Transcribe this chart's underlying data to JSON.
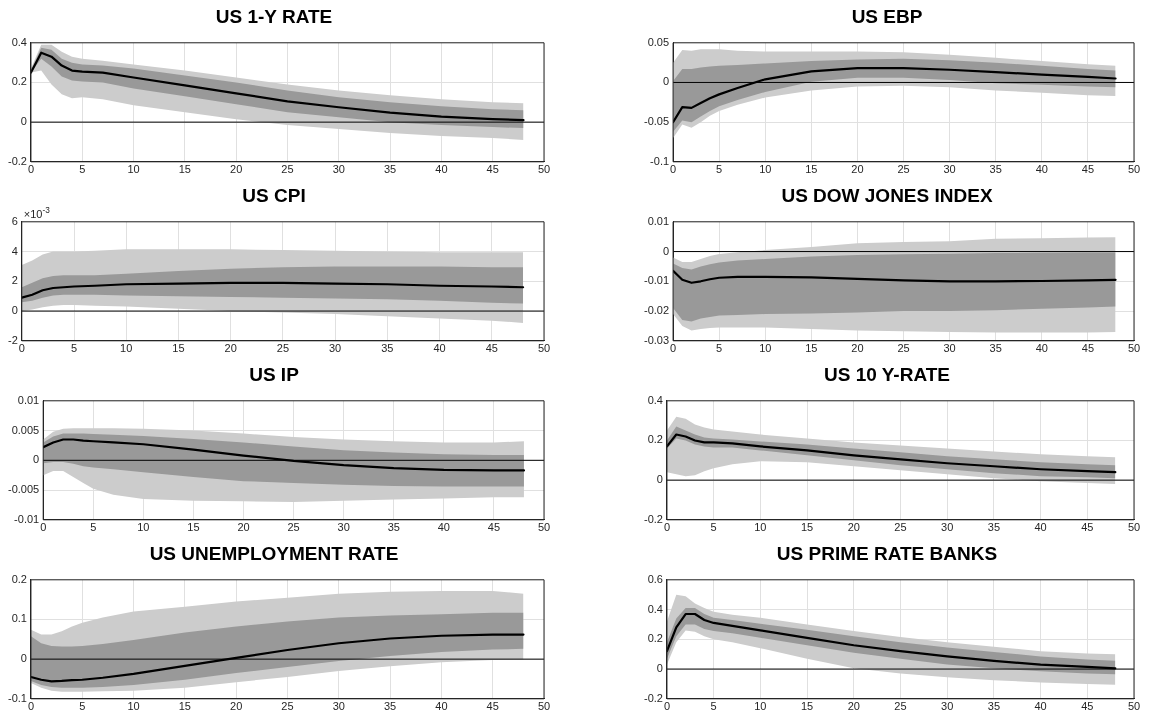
{
  "chart_data": [
    {
      "type": "line",
      "title": "US 1-Y RATE",
      "x": [
        0,
        1,
        2,
        3,
        4,
        5,
        7,
        10,
        15,
        20,
        25,
        30,
        35,
        40,
        45,
        48
      ],
      "xlim": [
        0,
        50
      ],
      "xticks": [
        0,
        5,
        10,
        15,
        20,
        25,
        30,
        35,
        40,
        45,
        50
      ],
      "ylim": [
        -0.2,
        0.4
      ],
      "yticks": [
        -0.2,
        0,
        0.2,
        0.4
      ],
      "grid": true,
      "marker": "none",
      "ref_lines": [
        {
          "axis": "y",
          "value": 0,
          "color": "#000000"
        }
      ],
      "series": [
        {
          "color": "#cccccc",
          "values": [
            null,
            null,
            null,
            null,
            null,
            null,
            null,
            null,
            null,
            null,
            null,
            null,
            null,
            null,
            null,
            null
          ],
          "lower": [
            0.25,
            0.26,
            0.19,
            0.14,
            0.12,
            0.125,
            0.115,
            0.085,
            0.05,
            0.015,
            -0.015,
            -0.035,
            -0.055,
            -0.07,
            -0.08,
            -0.09
          ],
          "upper": [
            0.27,
            0.39,
            0.39,
            0.355,
            0.33,
            0.32,
            0.31,
            0.29,
            0.26,
            0.225,
            0.19,
            0.16,
            0.135,
            0.115,
            0.1,
            0.095
          ]
        },
        {
          "color": "#999999",
          "values": [
            null,
            null,
            null,
            null,
            null,
            null,
            null,
            null,
            null,
            null,
            null,
            null,
            null,
            null,
            null,
            null
          ],
          "lower": [
            0.25,
            0.32,
            0.28,
            0.23,
            0.21,
            0.205,
            0.2,
            0.17,
            0.13,
            0.09,
            0.05,
            0.025,
            0.0,
            -0.015,
            -0.025,
            -0.03
          ],
          "upper": [
            0.26,
            0.375,
            0.365,
            0.32,
            0.3,
            0.29,
            0.285,
            0.27,
            0.235,
            0.2,
            0.16,
            0.125,
            0.1,
            0.08,
            0.065,
            0.06
          ]
        },
        {
          "color": "#000000",
          "values": [
            0.25,
            0.35,
            0.33,
            0.285,
            0.26,
            0.255,
            0.25,
            0.225,
            0.185,
            0.145,
            0.105,
            0.075,
            0.048,
            0.028,
            0.015,
            0.01
          ]
        }
      ]
    },
    {
      "type": "line",
      "title": "US EBP",
      "x": [
        0,
        1,
        2,
        3,
        4,
        5,
        7,
        10,
        15,
        20,
        25,
        30,
        35,
        40,
        45,
        48
      ],
      "xlim": [
        0,
        50
      ],
      "xticks": [
        0,
        5,
        10,
        15,
        20,
        25,
        30,
        35,
        40,
        45,
        50
      ],
      "ylim": [
        -0.1,
        0.05
      ],
      "yticks": [
        -0.1,
        -0.05,
        0,
        0.05
      ],
      "grid": true,
      "marker": "none",
      "ref_lines": [
        {
          "axis": "y",
          "value": 0,
          "color": "#000000"
        }
      ],
      "series": [
        {
          "color": "#cccccc",
          "values": [
            null,
            null,
            null,
            null,
            null,
            null,
            null,
            null,
            null,
            null,
            null,
            null,
            null,
            null,
            null,
            null
          ],
          "lower": [
            -0.07,
            -0.053,
            -0.057,
            -0.05,
            -0.042,
            -0.036,
            -0.028,
            -0.019,
            -0.01,
            -0.005,
            -0.004,
            -0.006,
            -0.01,
            -0.013,
            -0.016,
            -0.017
          ],
          "upper": [
            0.025,
            0.041,
            0.04,
            0.042,
            0.042,
            0.042,
            0.04,
            0.039,
            0.039,
            0.039,
            0.038,
            0.035,
            0.031,
            0.027,
            0.023,
            0.021
          ]
        },
        {
          "color": "#999999",
          "values": [
            null,
            null,
            null,
            null,
            null,
            null,
            null,
            null,
            null,
            null,
            null,
            null,
            null,
            null,
            null,
            null
          ],
          "lower": [
            -0.062,
            -0.048,
            -0.05,
            -0.043,
            -0.036,
            -0.03,
            -0.022,
            -0.012,
            0.001,
            0.006,
            0.006,
            0.003,
            -0.001,
            -0.003,
            -0.005,
            -0.006
          ],
          "upper": [
            0.002,
            0.017,
            0.017,
            0.019,
            0.02,
            0.021,
            0.022,
            0.024,
            0.027,
            0.029,
            0.03,
            0.028,
            0.025,
            0.021,
            0.017,
            0.015
          ]
        },
        {
          "color": "#000000",
          "values": [
            -0.05,
            -0.031,
            -0.032,
            -0.026,
            -0.02,
            -0.015,
            -0.007,
            0.004,
            0.014,
            0.018,
            0.018,
            0.016,
            0.013,
            0.01,
            0.007,
            0.005
          ]
        }
      ]
    },
    {
      "type": "line",
      "title": "US CPI",
      "annotations": [
        "×10$^{-3}$"
      ],
      "x": [
        0,
        1,
        2,
        3,
        4,
        5,
        7,
        10,
        15,
        20,
        25,
        30,
        35,
        40,
        45,
        48
      ],
      "xlim": [
        0,
        50
      ],
      "xticks": [
        0,
        5,
        10,
        15,
        20,
        25,
        30,
        35,
        40,
        45,
        50
      ],
      "ylim": [
        -2,
        6
      ],
      "yticks": [
        -2,
        0,
        2,
        4,
        6
      ],
      "grid": true,
      "marker": "none",
      "ref_lines": [
        {
          "axis": "y",
          "value": 0,
          "color": "#000000"
        }
      ],
      "series": [
        {
          "color": "#cccccc",
          "values": [
            null,
            null,
            null,
            null,
            null,
            null,
            null,
            null,
            null,
            null,
            null,
            null,
            null,
            null,
            null,
            null
          ],
          "lower": [
            0.0,
            0.1,
            0.25,
            0.35,
            0.4,
            0.4,
            0.35,
            0.3,
            0.15,
            0.0,
            -0.1,
            -0.2,
            -0.35,
            -0.5,
            -0.65,
            -0.8
          ],
          "upper": [
            3.1,
            3.4,
            3.8,
            4.0,
            4.0,
            4.0,
            4.05,
            4.15,
            4.15,
            4.15,
            4.1,
            4.05,
            4.0,
            3.95,
            3.95,
            3.95
          ]
        },
        {
          "color": "#999999",
          "values": [
            null,
            null,
            null,
            null,
            null,
            null,
            null,
            null,
            null,
            null,
            null,
            null,
            null,
            null,
            null,
            null
          ],
          "lower": [
            0.6,
            0.7,
            0.9,
            1.05,
            1.1,
            1.1,
            1.1,
            1.05,
            1.0,
            0.95,
            0.9,
            0.85,
            0.8,
            0.7,
            0.55,
            0.5
          ],
          "upper": [
            1.6,
            1.9,
            2.2,
            2.35,
            2.4,
            2.4,
            2.4,
            2.5,
            2.7,
            2.85,
            2.95,
            3.0,
            3.0,
            3.0,
            2.95,
            2.95
          ]
        },
        {
          "color": "#000000",
          "values": [
            0.9,
            1.1,
            1.4,
            1.55,
            1.6,
            1.65,
            1.7,
            1.8,
            1.85,
            1.9,
            1.9,
            1.85,
            1.8,
            1.7,
            1.65,
            1.6
          ]
        }
      ]
    },
    {
      "type": "line",
      "title": "US DOW JONES INDEX",
      "x": [
        0,
        1,
        2,
        3,
        4,
        5,
        7,
        10,
        15,
        20,
        25,
        30,
        35,
        40,
        45,
        48
      ],
      "xlim": [
        0,
        50
      ],
      "xticks": [
        0,
        5,
        10,
        15,
        20,
        25,
        30,
        35,
        40,
        45,
        50
      ],
      "ylim": [
        -0.03,
        0.01
      ],
      "yticks": [
        -0.03,
        -0.02,
        -0.01,
        0,
        0.01
      ],
      "grid": true,
      "marker": "none",
      "ref_lines": [
        {
          "axis": "y",
          "value": 0,
          "color": "#000000"
        }
      ],
      "series": [
        {
          "color": "#cccccc",
          "values": [
            null,
            null,
            null,
            null,
            null,
            null,
            null,
            null,
            null,
            null,
            null,
            null,
            null,
            null,
            null,
            null
          ],
          "lower": [
            -0.021,
            -0.025,
            -0.0265,
            -0.026,
            -0.0257,
            -0.0255,
            -0.0255,
            -0.0255,
            -0.026,
            -0.0265,
            -0.0268,
            -0.027,
            -0.0272,
            -0.0272,
            -0.0272,
            -0.027
          ],
          "upper": [
            -0.002,
            -0.0035,
            -0.0035,
            -0.0025,
            -0.0015,
            -0.0008,
            -0.0002,
            0.0005,
            0.0015,
            0.0028,
            0.0032,
            0.0035,
            0.0043,
            0.0045,
            0.0047,
            0.0048
          ]
        },
        {
          "color": "#999999",
          "values": [
            null,
            null,
            null,
            null,
            null,
            null,
            null,
            null,
            null,
            null,
            null,
            null,
            null,
            null,
            null,
            null
          ],
          "lower": [
            -0.019,
            -0.023,
            -0.0235,
            -0.0225,
            -0.022,
            -0.0215,
            -0.0213,
            -0.021,
            -0.0208,
            -0.0205,
            -0.02,
            -0.02,
            -0.0197,
            -0.0192,
            -0.0188,
            -0.0185
          ],
          "upper": [
            -0.004,
            -0.0055,
            -0.006,
            -0.005,
            -0.0043,
            -0.0037,
            -0.003,
            -0.0025,
            -0.0017,
            -0.0012,
            -0.0009,
            -0.0007,
            -0.0005,
            -0.0004,
            -0.0003,
            -0.0003
          ]
        },
        {
          "color": "#000000",
          "values": [
            -0.0065,
            -0.0095,
            -0.0105,
            -0.01,
            -0.0093,
            -0.0088,
            -0.0085,
            -0.0085,
            -0.0087,
            -0.0092,
            -0.0097,
            -0.01,
            -0.01,
            -0.0099,
            -0.0097,
            -0.0095
          ]
        }
      ]
    },
    {
      "type": "line",
      "title": "US IP",
      "x": [
        0,
        1,
        2,
        3,
        4,
        5,
        7,
        10,
        15,
        20,
        25,
        30,
        35,
        40,
        45,
        48
      ],
      "xlim": [
        0,
        50
      ],
      "xticks": [
        0,
        5,
        10,
        15,
        20,
        25,
        30,
        35,
        40,
        45,
        50
      ],
      "ylim": [
        -0.01,
        0.01
      ],
      "yticks": [
        -0.01,
        -0.005,
        0,
        0.005,
        0.01
      ],
      "grid": true,
      "marker": "none",
      "ref_lines": [
        {
          "axis": "y",
          "value": 0,
          "color": "#000000"
        }
      ],
      "series": [
        {
          "color": "#cccccc",
          "values": [
            null,
            null,
            null,
            null,
            null,
            null,
            null,
            null,
            null,
            null,
            null,
            null,
            null,
            null,
            null,
            null
          ],
          "lower": [
            -0.0025,
            -0.0018,
            -0.0018,
            -0.0028,
            -0.0038,
            -0.0048,
            -0.0058,
            -0.0065,
            -0.0068,
            -0.0069,
            -0.007,
            -0.0068,
            -0.0066,
            -0.0064,
            -0.0062,
            -0.0062
          ],
          "upper": [
            0.0035,
            0.0048,
            0.0053,
            0.0054,
            0.0054,
            0.0054,
            0.0054,
            0.0053,
            0.005,
            0.0045,
            0.0039,
            0.0035,
            0.0032,
            0.003,
            0.003,
            0.0032
          ]
        },
        {
          "color": "#999999",
          "values": [
            null,
            null,
            null,
            null,
            null,
            null,
            null,
            null,
            null,
            null,
            null,
            null,
            null,
            null,
            null,
            null
          ],
          "lower": [
            -0.0005,
            -0.0003,
            -0.0003,
            -0.0006,
            -0.001,
            -0.0012,
            -0.0015,
            -0.002,
            -0.0028,
            -0.0035,
            -0.0038,
            -0.0041,
            -0.0043,
            -0.0044,
            -0.0044,
            -0.0044
          ],
          "upper": [
            0.003,
            0.004,
            0.0045,
            0.0045,
            0.0045,
            0.0044,
            0.0043,
            0.0041,
            0.0036,
            0.003,
            0.0023,
            0.0017,
            0.0013,
            0.001,
            0.0009,
            0.0009
          ]
        },
        {
          "color": "#000000",
          "values": [
            0.0022,
            0.003,
            0.0035,
            0.0035,
            0.0033,
            0.0032,
            0.003,
            0.0027,
            0.0018,
            0.0008,
            -0.0001,
            -0.0008,
            -0.0013,
            -0.0016,
            -0.0017,
            -0.0017
          ]
        }
      ]
    },
    {
      "type": "line",
      "title": "US 10 Y-RATE",
      "x": [
        0,
        1,
        2,
        3,
        4,
        5,
        7,
        10,
        15,
        20,
        25,
        30,
        35,
        40,
        45,
        48
      ],
      "xlim": [
        0,
        50
      ],
      "xticks": [
        0,
        5,
        10,
        15,
        20,
        25,
        30,
        35,
        40,
        45,
        50
      ],
      "ylim": [
        -0.2,
        0.4
      ],
      "yticks": [
        -0.2,
        0,
        0.2,
        0.4
      ],
      "grid": true,
      "marker": "none",
      "ref_lines": [
        {
          "axis": "y",
          "value": 0,
          "color": "#000000"
        }
      ],
      "series": [
        {
          "color": "#cccccc",
          "values": [
            null,
            null,
            null,
            null,
            null,
            null,
            null,
            null,
            null,
            null,
            null,
            null,
            null,
            null,
            null,
            null
          ],
          "lower": [
            0.04,
            0.03,
            0.02,
            0.025,
            0.045,
            0.06,
            0.08,
            0.095,
            0.09,
            0.07,
            0.05,
            0.03,
            0.01,
            -0.005,
            -0.015,
            -0.02
          ],
          "upper": [
            0.25,
            0.32,
            0.31,
            0.28,
            0.265,
            0.255,
            0.245,
            0.23,
            0.21,
            0.19,
            0.175,
            0.16,
            0.145,
            0.13,
            0.12,
            0.115
          ]
        },
        {
          "color": "#999999",
          "values": [
            null,
            null,
            null,
            null,
            null,
            null,
            null,
            null,
            null,
            null,
            null,
            null,
            null,
            null,
            null,
            null
          ],
          "lower": [
            0.16,
            0.21,
            0.2,
            0.18,
            0.17,
            0.165,
            0.165,
            0.15,
            0.125,
            0.1,
            0.075,
            0.055,
            0.035,
            0.02,
            0.015,
            0.01
          ],
          "upper": [
            0.2,
            0.27,
            0.25,
            0.23,
            0.215,
            0.21,
            0.205,
            0.195,
            0.18,
            0.16,
            0.14,
            0.12,
            0.105,
            0.09,
            0.08,
            0.075
          ]
        },
        {
          "color": "#000000",
          "values": [
            0.17,
            0.23,
            0.22,
            0.2,
            0.19,
            0.19,
            0.185,
            0.17,
            0.15,
            0.125,
            0.105,
            0.085,
            0.07,
            0.055,
            0.045,
            0.04
          ]
        }
      ]
    },
    {
      "type": "line",
      "title": "US UNEMPLOYMENT RATE",
      "x": [
        0,
        1,
        2,
        3,
        4,
        5,
        7,
        10,
        15,
        20,
        25,
        30,
        35,
        40,
        45,
        48
      ],
      "xlim": [
        0,
        50
      ],
      "xticks": [
        0,
        5,
        10,
        15,
        20,
        25,
        30,
        35,
        40,
        45,
        50
      ],
      "ylim": [
        -0.1,
        0.2
      ],
      "yticks": [
        -0.1,
        0,
        0.1,
        0.2
      ],
      "grid": true,
      "marker": "none",
      "ref_lines": [
        {
          "axis": "y",
          "value": 0,
          "color": "#000000"
        }
      ],
      "series": [
        {
          "color": "#cccccc",
          "values": [
            null,
            null,
            null,
            null,
            null,
            null,
            null,
            null,
            null,
            null,
            null,
            null,
            null,
            null,
            null,
            null
          ],
          "lower": [
            -0.06,
            -0.072,
            -0.08,
            -0.082,
            -0.082,
            -0.082,
            -0.081,
            -0.08,
            -0.072,
            -0.058,
            -0.045,
            -0.03,
            -0.018,
            -0.008,
            -0.002,
            -0.001
          ],
          "upper": [
            0.074,
            0.062,
            0.062,
            0.07,
            0.082,
            0.092,
            0.105,
            0.12,
            0.132,
            0.145,
            0.155,
            0.165,
            0.17,
            0.172,
            0.172,
            0.165
          ]
        },
        {
          "color": "#999999",
          "values": [
            null,
            null,
            null,
            null,
            null,
            null,
            null,
            null,
            null,
            null,
            null,
            null,
            null,
            null,
            null,
            null
          ],
          "lower": [
            -0.055,
            -0.065,
            -0.07,
            -0.072,
            -0.072,
            -0.072,
            -0.07,
            -0.065,
            -0.052,
            -0.035,
            -0.02,
            -0.005,
            0.008,
            0.018,
            0.024,
            0.026
          ],
          "upper": [
            0.058,
            0.04,
            0.033,
            0.032,
            0.032,
            0.033,
            0.038,
            0.048,
            0.067,
            0.082,
            0.095,
            0.105,
            0.11,
            0.113,
            0.117,
            0.117
          ]
        },
        {
          "color": "#000000",
          "values": [
            -0.045,
            -0.052,
            -0.056,
            -0.055,
            -0.053,
            -0.052,
            -0.047,
            -0.037,
            -0.017,
            0.003,
            0.023,
            0.04,
            0.052,
            0.059,
            0.062,
            0.062
          ]
        }
      ]
    },
    {
      "type": "line",
      "title": "US PRIME RATE BANKS",
      "x": [
        0,
        1,
        2,
        3,
        4,
        5,
        7,
        10,
        15,
        20,
        25,
        30,
        35,
        40,
        45,
        48
      ],
      "xlim": [
        0,
        50
      ],
      "xticks": [
        0,
        5,
        10,
        15,
        20,
        25,
        30,
        35,
        40,
        45,
        50
      ],
      "ylim": [
        -0.2,
        0.6
      ],
      "yticks": [
        -0.2,
        0,
        0.2,
        0.4,
        0.6
      ],
      "grid": true,
      "marker": "none",
      "ref_lines": [
        {
          "axis": "y",
          "value": 0,
          "color": "#000000"
        }
      ],
      "series": [
        {
          "color": "#cccccc",
          "values": [
            null,
            null,
            null,
            null,
            null,
            null,
            null,
            null,
            null,
            null,
            null,
            null,
            null,
            null,
            null,
            null
          ],
          "lower": [
            0.03,
            0.18,
            0.26,
            0.25,
            0.22,
            0.2,
            0.18,
            0.14,
            0.07,
            0.005,
            -0.03,
            -0.055,
            -0.075,
            -0.09,
            -0.1,
            -0.105
          ],
          "upper": [
            0.32,
            0.5,
            0.49,
            0.44,
            0.41,
            0.385,
            0.365,
            0.345,
            0.3,
            0.255,
            0.215,
            0.18,
            0.15,
            0.12,
            0.105,
            0.1
          ]
        },
        {
          "color": "#999999",
          "values": [
            null,
            null,
            null,
            null,
            null,
            null,
            null,
            null,
            null,
            null,
            null,
            null,
            null,
            null,
            null,
            null
          ],
          "lower": [
            0.07,
            0.22,
            0.3,
            0.3,
            0.27,
            0.255,
            0.24,
            0.21,
            0.16,
            0.11,
            0.07,
            0.03,
            0.005,
            -0.015,
            -0.03,
            -0.035
          ],
          "upper": [
            0.18,
            0.34,
            0.41,
            0.41,
            0.37,
            0.345,
            0.33,
            0.305,
            0.265,
            0.22,
            0.18,
            0.145,
            0.115,
            0.085,
            0.065,
            0.055
          ]
        },
        {
          "color": "#000000",
          "values": [
            0.12,
            0.28,
            0.37,
            0.37,
            0.33,
            0.31,
            0.29,
            0.26,
            0.21,
            0.16,
            0.12,
            0.085,
            0.055,
            0.03,
            0.015,
            0.005
          ]
        }
      ]
    }
  ]
}
